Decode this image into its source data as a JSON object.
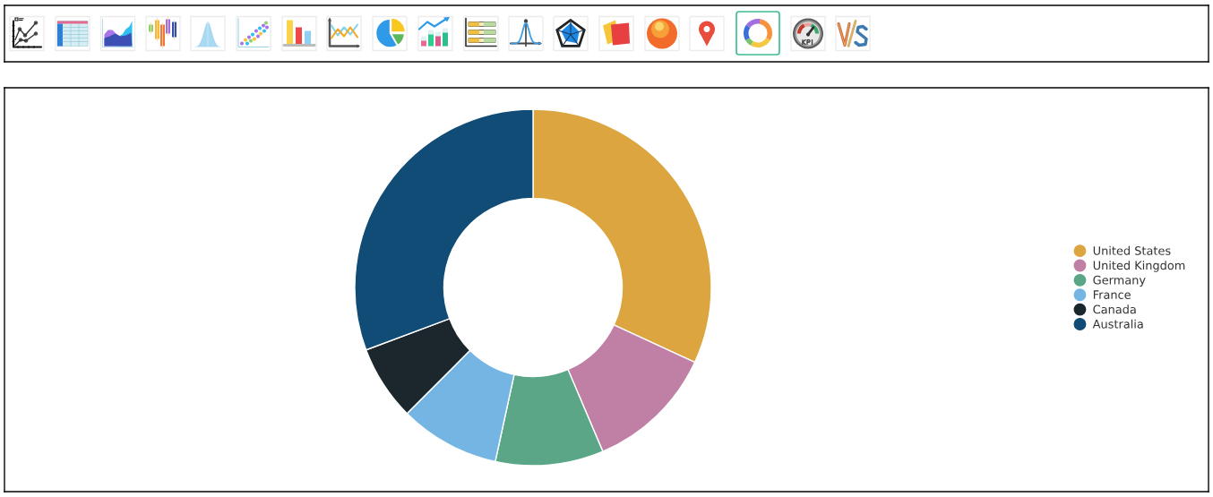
{
  "chart_data": {
    "type": "donut",
    "categories": [
      "United States",
      "United Kingdom",
      "Germany",
      "France",
      "Canada",
      "Australia"
    ],
    "values": [
      31.9,
      11.7,
      9.8,
      9.1,
      6.8,
      30.7
    ],
    "colors": [
      "#dca540",
      "#c07fa5",
      "#5aa687",
      "#74b5e3",
      "#1c262d",
      "#104c75"
    ],
    "legend": "right"
  }
}
